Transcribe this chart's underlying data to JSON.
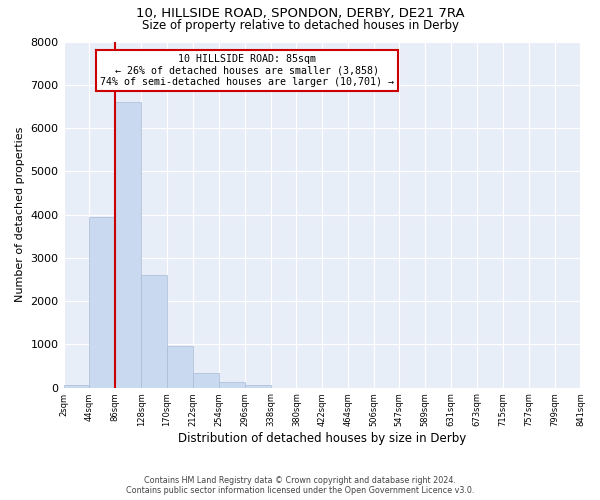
{
  "title_line1": "10, HILLSIDE ROAD, SPONDON, DERBY, DE21 7RA",
  "title_line2": "Size of property relative to detached houses in Derby",
  "xlabel": "Distribution of detached houses by size in Derby",
  "ylabel": "Number of detached properties",
  "bin_edges": [
    2,
    44,
    86,
    128,
    170,
    212,
    254,
    296,
    338,
    380,
    422,
    464,
    506,
    547,
    589,
    631,
    673,
    715,
    757,
    799,
    841
  ],
  "bin_counts": [
    60,
    3950,
    6600,
    2600,
    960,
    330,
    130,
    60,
    0,
    0,
    0,
    0,
    0,
    0,
    0,
    0,
    0,
    0,
    0,
    0
  ],
  "bar_color": "#c9d9f0",
  "bar_edge_color": "#aabbd4",
  "property_size": 85,
  "vertical_line_color": "#cc0000",
  "annotation_box_color": "#cc0000",
  "annotation_text_line1": "10 HILLSIDE ROAD: 85sqm",
  "annotation_text_line2": "← 26% of detached houses are smaller (3,858)",
  "annotation_text_line3": "74% of semi-detached houses are larger (10,701) →",
  "ylim": [
    0,
    8000
  ],
  "yticks": [
    0,
    1000,
    2000,
    3000,
    4000,
    5000,
    6000,
    7000,
    8000
  ],
  "tick_labels": [
    "2sqm",
    "44sqm",
    "86sqm",
    "128sqm",
    "170sqm",
    "212sqm",
    "254sqm",
    "296sqm",
    "338sqm",
    "380sqm",
    "422sqm",
    "464sqm",
    "506sqm",
    "547sqm",
    "589sqm",
    "631sqm",
    "673sqm",
    "715sqm",
    "757sqm",
    "799sqm",
    "841sqm"
  ],
  "footer_line1": "Contains HM Land Registry data © Crown copyright and database right 2024.",
  "footer_line2": "Contains public sector information licensed under the Open Government Licence v3.0.",
  "bg_color": "#ffffff",
  "plot_bg_color": "#e8eef8",
  "grid_color": "#ffffff"
}
